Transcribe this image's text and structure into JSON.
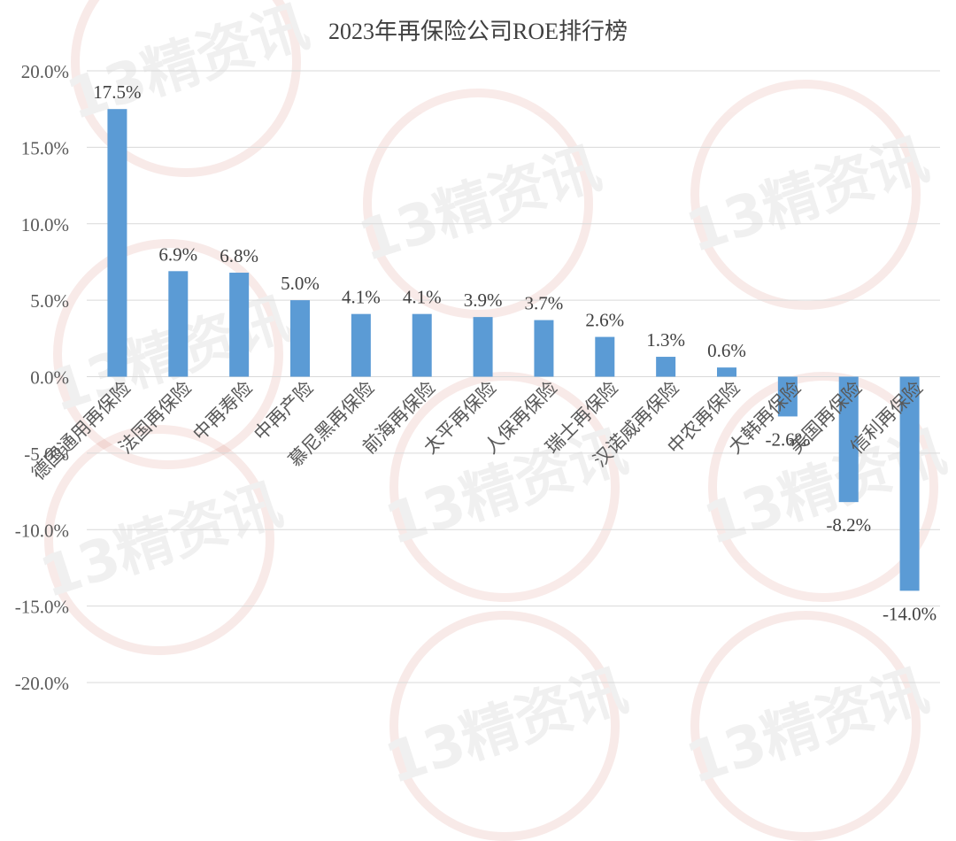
{
  "watermark": {
    "text": "13精资讯",
    "colors": {
      "ring": "#c0392b",
      "text": "#7a7a7a"
    }
  },
  "chart_data": {
    "type": "bar",
    "title": "2023年再保险公司ROE排行榜",
    "xlabel": "",
    "ylabel": "",
    "ylim": [
      -20,
      20
    ],
    "ytick_step": 5,
    "ytick_labels": [
      "20.0%",
      "15.0%",
      "10.0%",
      "5.0%",
      "0.0%",
      "-5.0%",
      "-10.0%",
      "-15.0%",
      "-20.0%"
    ],
    "grid": "horizontal",
    "bar_color": "#5b9bd5",
    "categories": [
      "德国通用再保险",
      "法国再保险",
      "中再寿险",
      "中再产险",
      "慕尼黑再保险",
      "前海再保险",
      "太平再保险",
      "人保再保险",
      "瑞士再保险",
      "汉诺威再保险",
      "中农再保险",
      "大韩再保险",
      "美国再保险",
      "信利再保险"
    ],
    "values": [
      17.5,
      6.9,
      6.8,
      5.0,
      4.1,
      4.1,
      3.9,
      3.7,
      2.6,
      1.3,
      0.6,
      -2.6,
      -8.2,
      -14.0
    ],
    "data_labels": [
      "17.5%",
      "6.9%",
      "6.8%",
      "5.0%",
      "4.1%",
      "4.1%",
      "3.9%",
      "3.7%",
      "2.6%",
      "1.3%",
      "0.6%",
      "-2.6%",
      "-8.2%",
      "-14.0%"
    ]
  }
}
